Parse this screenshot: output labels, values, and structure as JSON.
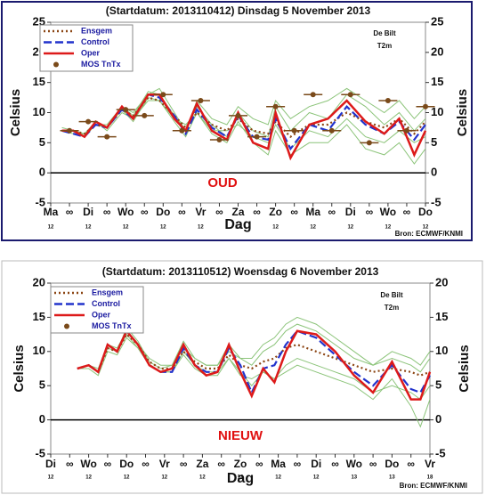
{
  "chart_data": [
    {
      "type": "line",
      "title": "(Startdatum: 2013110412)  Dinsdag   5 November  2013",
      "annotation": "OUD",
      "location": "De Bilt",
      "variable": "T2m",
      "ylabel": "Celsius",
      "xlabel": "Dag",
      "source": "Bron: ECMWF/KNMI",
      "legend_position": "upper left",
      "grid": false,
      "xlim": [
        0,
        20
      ],
      "xticks": [
        {
          "value": 0,
          "label": "Ma"
        },
        {
          "value": 1,
          "label": "∞"
        },
        {
          "value": 2,
          "label": "Di"
        },
        {
          "value": 3,
          "label": "∞"
        },
        {
          "value": 4,
          "label": "Wo"
        },
        {
          "value": 5,
          "label": "∞"
        },
        {
          "value": 6,
          "label": "Do"
        },
        {
          "value": 7,
          "label": "∞"
        },
        {
          "value": 8,
          "label": "Vr"
        },
        {
          "value": 9,
          "label": "∞"
        },
        {
          "value": 10,
          "label": "Za"
        },
        {
          "value": 11,
          "label": "∞"
        },
        {
          "value": 12,
          "label": "Zo"
        },
        {
          "value": 13,
          "label": "∞"
        },
        {
          "value": 14,
          "label": "Ma"
        },
        {
          "value": 15,
          "label": "∞"
        },
        {
          "value": 16,
          "label": "Di"
        },
        {
          "value": 17,
          "label": "∞"
        },
        {
          "value": 18,
          "label": "Wo"
        },
        {
          "value": 19,
          "label": "∞"
        },
        {
          "value": 20,
          "label": "Do"
        }
      ],
      "x_sublabels": [
        {
          "value": 0,
          "label": "12"
        },
        {
          "value": 2,
          "label": "12"
        },
        {
          "value": 4,
          "label": "12"
        },
        {
          "value": 6,
          "label": "12"
        },
        {
          "value": 8,
          "label": "12"
        },
        {
          "value": 10,
          "label": "12"
        },
        {
          "value": 12,
          "label": "12"
        },
        {
          "value": 14,
          "label": "12"
        },
        {
          "value": 16,
          "label": "12"
        },
        {
          "value": 18,
          "label": "12"
        },
        {
          "value": 20,
          "label": "12"
        }
      ],
      "ylim": [
        -5,
        25
      ],
      "yticks": [
        -5,
        0,
        5,
        10,
        15,
        20,
        25
      ],
      "x": [
        0.6,
        1.2,
        1.8,
        2.4,
        3,
        3.8,
        4.4,
        5.2,
        5.8,
        6.6,
        7.2,
        7.8,
        8.6,
        9.4,
        10,
        10.8,
        11.6,
        12,
        12.8,
        13.8,
        14.8,
        15.8,
        16.8,
        17.8,
        18.6,
        19.4,
        20
      ],
      "ensemble_color": "#8cc47a",
      "ensemble_members": [
        [
          7,
          7,
          6,
          8,
          7.5,
          11,
          9.5,
          13.5,
          13,
          9.5,
          7,
          11,
          8,
          6,
          10,
          7,
          6,
          11,
          7,
          10,
          9,
          13,
          11,
          8,
          10,
          7,
          9
        ],
        [
          7,
          6.5,
          6.5,
          8.5,
          7,
          10,
          9,
          12,
          12,
          9,
          8,
          10,
          7,
          7,
          8,
          6,
          5,
          8,
          4,
          7,
          6,
          9,
          6,
          5,
          7,
          5,
          6
        ],
        [
          7.5,
          7,
          6,
          8,
          8,
          11,
          10,
          13,
          14,
          10,
          7,
          12,
          9,
          8,
          11,
          9,
          8,
          12,
          9,
          11,
          12,
          14,
          12,
          10,
          12,
          9,
          11
        ],
        [
          7,
          7,
          6.5,
          8,
          7.5,
          10.5,
          8.5,
          12.5,
          12,
          8.5,
          6,
          10,
          6.5,
          5,
          8.5,
          5,
          3,
          7,
          3,
          5,
          5,
          8,
          4,
          3,
          5,
          1.5,
          4
        ]
      ],
      "series": [
        {
          "name": "Ensgem",
          "color": "#8b4513",
          "style": "dotted",
          "values": [
            7,
            7,
            6.5,
            8,
            7.5,
            10.5,
            9.5,
            12.5,
            12,
            9.5,
            7.5,
            10,
            8,
            7,
            9,
            7,
            6.5,
            8.5,
            6,
            8,
            8,
            10,
            8.5,
            7.5,
            9,
            6.5,
            8.5
          ]
        },
        {
          "name": "Control",
          "color": "#2233cc",
          "style": "dashed",
          "values": [
            7,
            6.5,
            6,
            8,
            7.5,
            10.5,
            9,
            13,
            12.5,
            9.5,
            6.5,
            10.5,
            7.5,
            6,
            9.5,
            6,
            5.5,
            9,
            4,
            8,
            7,
            11,
            8,
            6.5,
            8.5,
            5.5,
            8
          ]
        },
        {
          "name": "Oper",
          "color": "#dd1a1a",
          "style": "solid",
          "values": [
            7,
            7,
            6,
            8.5,
            7.5,
            11,
            9,
            13,
            13,
            9,
            7,
            11.5,
            7,
            5.5,
            10,
            5,
            4,
            10,
            2.5,
            8,
            9,
            12,
            8.5,
            6.5,
            9,
            3,
            7
          ]
        },
        {
          "name": "MOS TnTx",
          "color": "#7a4a1a",
          "style": "dot",
          "x": [
            1,
            2,
            3,
            4,
            5,
            6,
            7,
            8,
            9,
            10,
            11,
            12,
            13,
            14,
            15,
            16,
            17,
            18,
            19,
            20
          ],
          "values": [
            7,
            8.5,
            6,
            10.5,
            9.5,
            13,
            7,
            12,
            5.5,
            9.5,
            6,
            11,
            7,
            13,
            7,
            13,
            5,
            12,
            7,
            11
          ]
        }
      ]
    },
    {
      "type": "line",
      "title": "(Startdatum: 2013110512)  Woensdag   6 November  2013",
      "annotation": "NIEUW",
      "location": "De Bilt",
      "variable": "T2m",
      "ylabel": "Celsius",
      "xlabel": "Dag",
      "source": "Bron: ECMWF/KNMI",
      "legend_position": "upper left",
      "grid": false,
      "xlim": [
        0,
        20
      ],
      "xticks": [
        {
          "value": 0,
          "label": "Di"
        },
        {
          "value": 1,
          "label": "∞"
        },
        {
          "value": 2,
          "label": "Wo"
        },
        {
          "value": 3,
          "label": "∞"
        },
        {
          "value": 4,
          "label": "Do"
        },
        {
          "value": 5,
          "label": "∞"
        },
        {
          "value": 6,
          "label": "Vr"
        },
        {
          "value": 7,
          "label": "∞"
        },
        {
          "value": 8,
          "label": "Za"
        },
        {
          "value": 9,
          "label": "∞"
        },
        {
          "value": 10,
          "label": "Zo"
        },
        {
          "value": 11,
          "label": "∞"
        },
        {
          "value": 12,
          "label": "Ma"
        },
        {
          "value": 13,
          "label": "∞"
        },
        {
          "value": 14,
          "label": "Di"
        },
        {
          "value": 15,
          "label": "∞"
        },
        {
          "value": 16,
          "label": "Wo"
        },
        {
          "value": 17,
          "label": "∞"
        },
        {
          "value": 18,
          "label": "Do"
        },
        {
          "value": 19,
          "label": "∞"
        },
        {
          "value": 20,
          "label": "Vr"
        }
      ],
      "x_sublabels": [
        {
          "value": 0,
          "label": "12"
        },
        {
          "value": 2,
          "label": "12"
        },
        {
          "value": 4,
          "label": "12"
        },
        {
          "value": 6,
          "label": "12"
        },
        {
          "value": 8,
          "label": "12"
        },
        {
          "value": 10,
          "label": "12"
        },
        {
          "value": 12,
          "label": "12"
        },
        {
          "value": 14,
          "label": "12"
        },
        {
          "value": 16,
          "label": "13"
        },
        {
          "value": 18,
          "label": "13"
        },
        {
          "value": 20,
          "label": "18"
        }
      ],
      "ylim": [
        -5,
        20
      ],
      "yticks": [
        -5,
        0,
        5,
        10,
        15,
        20
      ],
      "x": [
        1.4,
        2,
        2.5,
        3,
        3.5,
        4,
        4.6,
        5.2,
        5.8,
        6.4,
        7,
        7.6,
        8.2,
        8.8,
        9.4,
        10,
        10.6,
        11.2,
        11.8,
        12.4,
        13,
        14,
        15,
        16,
        17,
        18,
        19,
        19.5,
        20
      ],
      "ensemble_color": "#8cc47a",
      "ensemble_members": [
        [
          7.5,
          8,
          7,
          11,
          10,
          13.5,
          11.5,
          8.5,
          7.5,
          8,
          11.5,
          9,
          8,
          8,
          11,
          9,
          8,
          10,
          11,
          13,
          14,
          13,
          11,
          9,
          8,
          9,
          8,
          7,
          9
        ],
        [
          7.5,
          7.5,
          6.5,
          10,
          9.5,
          12,
          10.5,
          8,
          7,
          7,
          9.5,
          7.5,
          6.5,
          6.5,
          9,
          7,
          5,
          7,
          6,
          8,
          9,
          8,
          7,
          6,
          4,
          5,
          4,
          3,
          5
        ],
        [
          7.5,
          8,
          7.5,
          11,
          10.5,
          13,
          11,
          9,
          8,
          8,
          10.5,
          9,
          8,
          8,
          10,
          9,
          9,
          11,
          12,
          14,
          15,
          14,
          12,
          10,
          8,
          10,
          9,
          8,
          10
        ],
        [
          7.5,
          8,
          7,
          10.5,
          10,
          12.5,
          10.5,
          8,
          7,
          7,
          10,
          8,
          7,
          7,
          9,
          6.5,
          6,
          7,
          6,
          7,
          8,
          7,
          6,
          5,
          3,
          6,
          2,
          -1,
          3
        ]
      ],
      "series": [
        {
          "name": "Ensgem",
          "color": "#8b4513",
          "style": "dotted",
          "values": [
            7.5,
            8,
            7,
            10.5,
            10,
            12.5,
            11,
            8.5,
            7.5,
            7.5,
            10,
            8.5,
            7.5,
            7.5,
            9.5,
            8,
            7.5,
            8.5,
            9,
            10.5,
            11,
            10,
            9,
            8,
            7,
            7.5,
            7,
            6.5,
            7
          ]
        },
        {
          "name": "Control",
          "color": "#2233cc",
          "style": "dashed",
          "values": [
            7.5,
            8,
            7,
            11,
            10,
            13,
            11,
            8,
            7,
            7,
            10.5,
            8,
            7,
            7,
            10.5,
            8,
            4,
            7.5,
            8,
            11,
            13,
            12,
            9.5,
            7,
            5,
            8,
            4.5,
            4,
            6.5
          ]
        },
        {
          "name": "Oper",
          "color": "#dd1a1a",
          "style": "solid",
          "values": [
            7.5,
            8,
            7,
            11,
            10,
            13,
            11,
            8,
            7,
            7.5,
            11,
            8,
            6.5,
            7,
            11,
            7,
            3.5,
            7.5,
            5.5,
            10,
            13,
            12.5,
            10,
            6.5,
            4,
            8.5,
            3,
            3,
            7
          ]
        },
        {
          "name": "MOS TnTx",
          "color": "#7a4a1a",
          "style": "dot",
          "x": [],
          "values": []
        }
      ]
    }
  ]
}
